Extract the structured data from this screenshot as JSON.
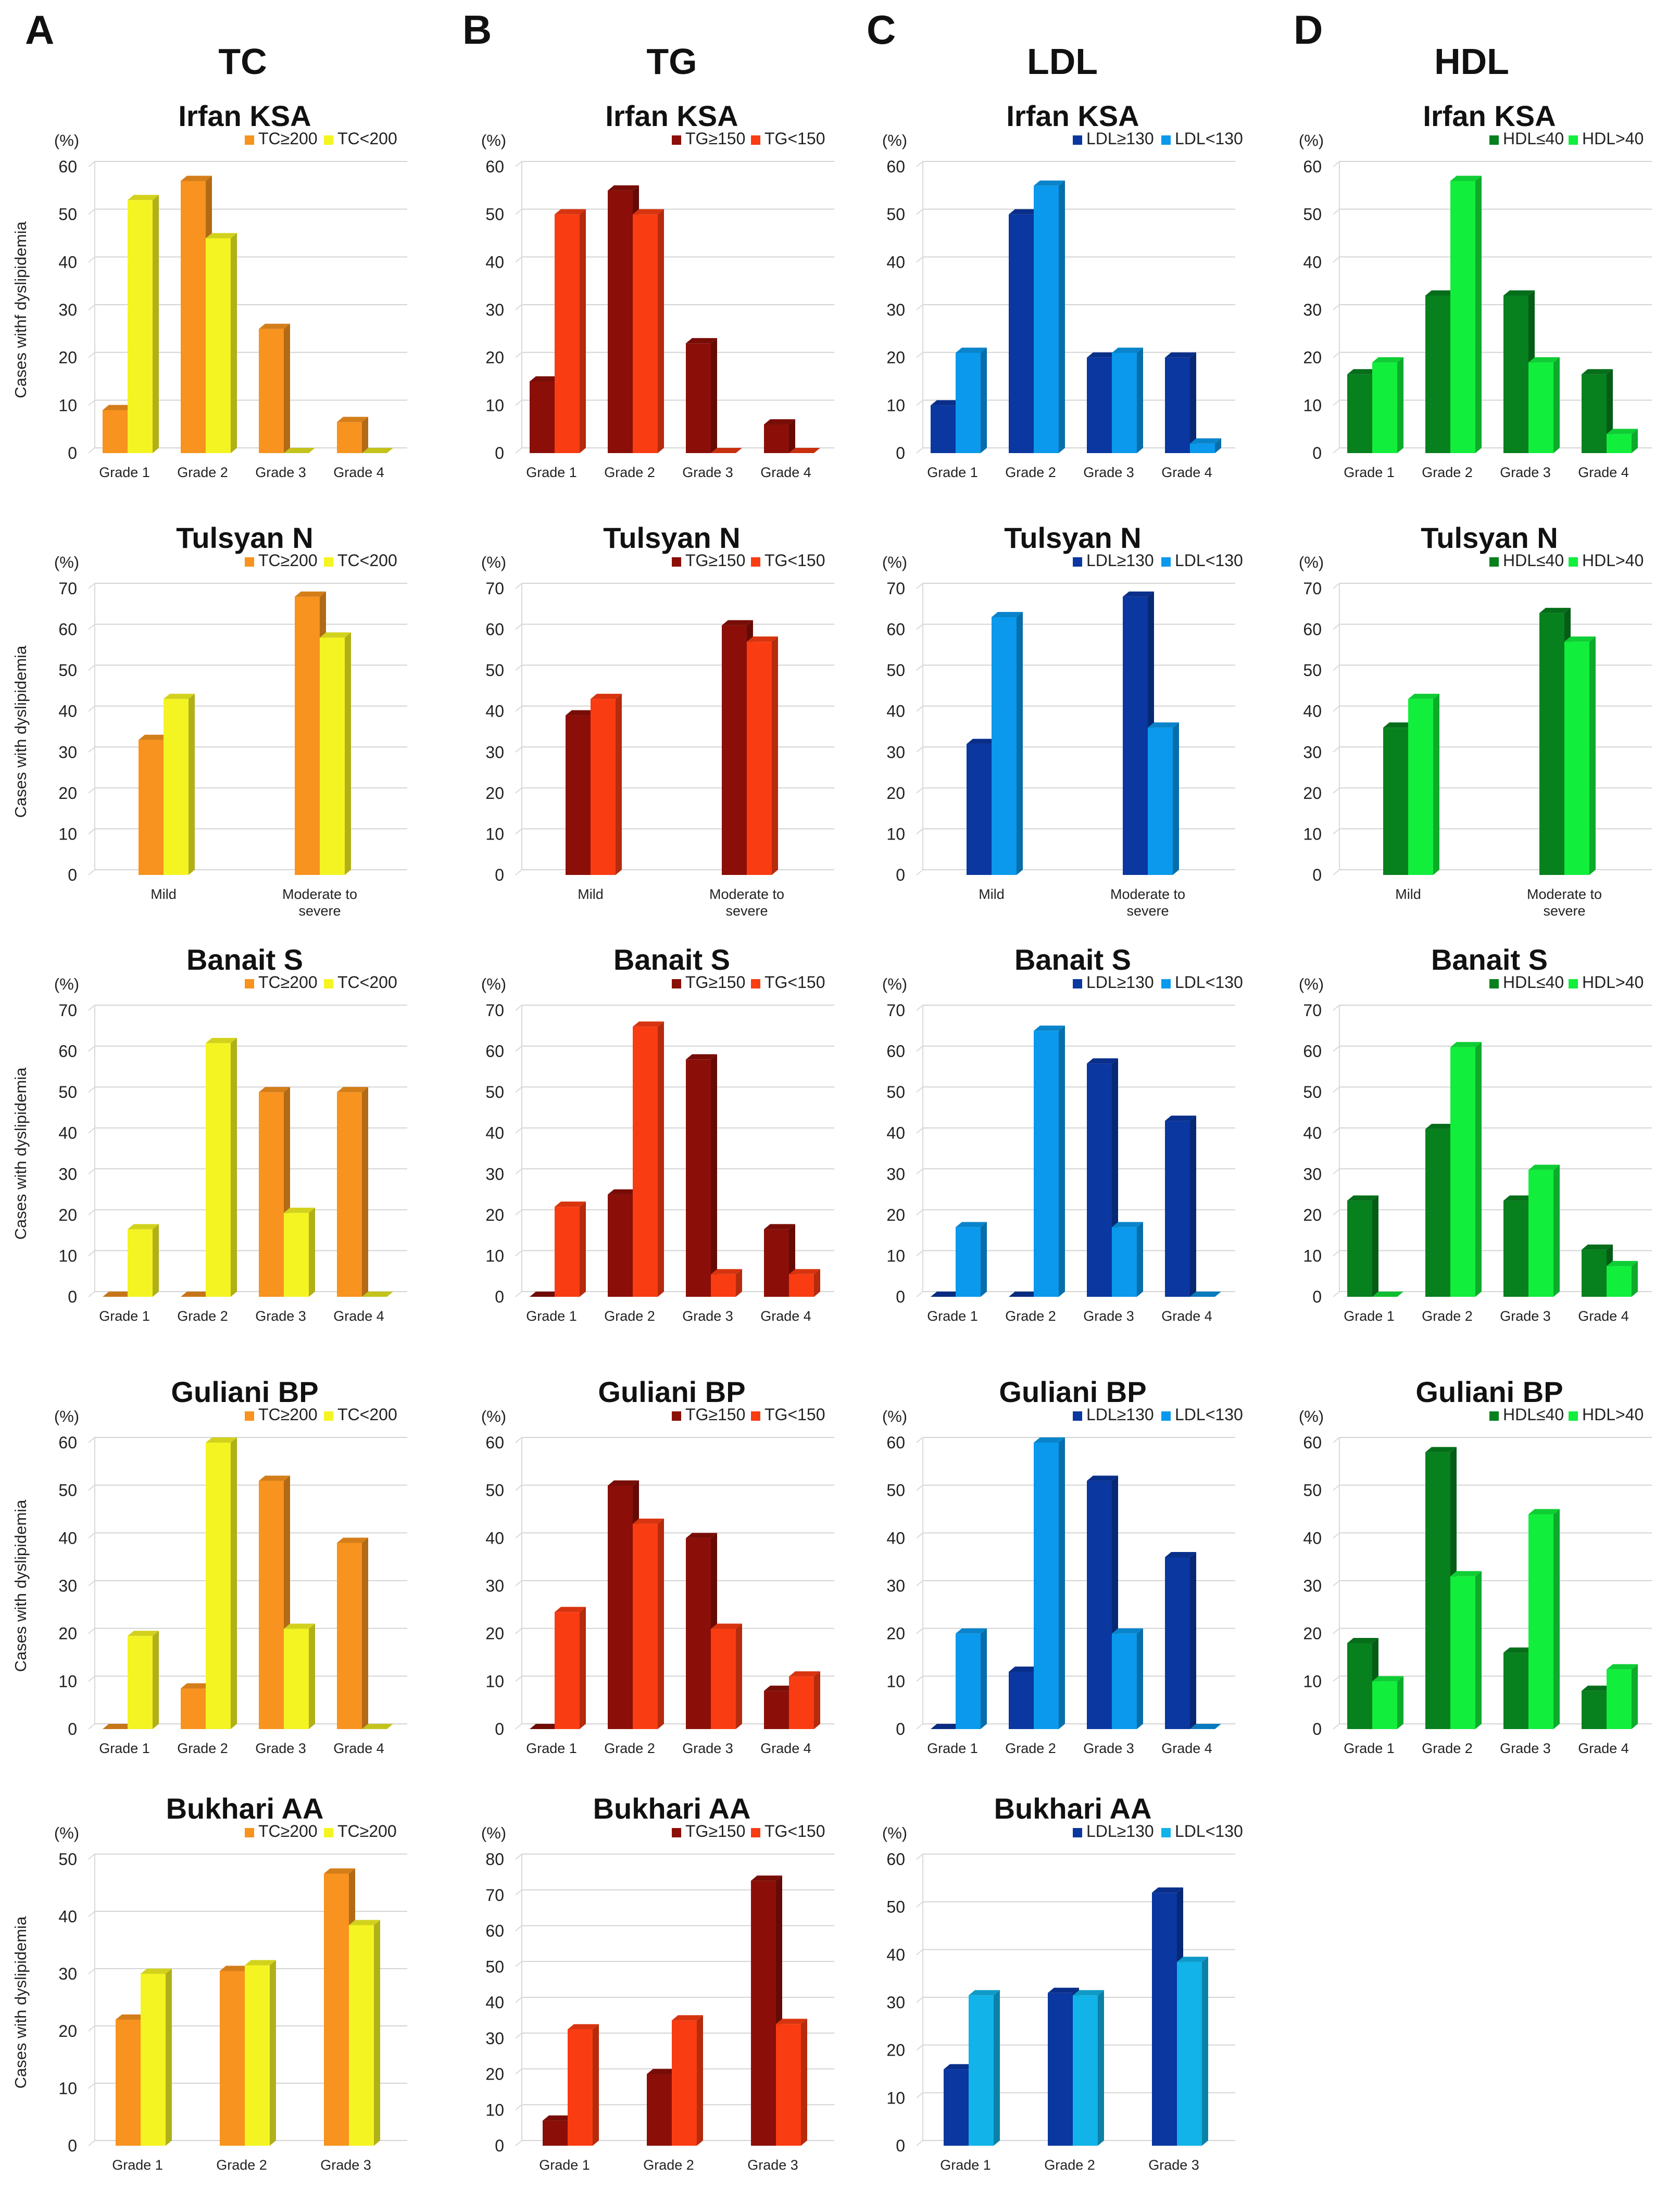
{
  "panel_letters": [
    "A",
    "B",
    "C",
    "D"
  ],
  "column_titles": [
    "TC",
    "TG",
    "LDL",
    "HDL"
  ],
  "colors": {
    "TC": [
      "#F7931E",
      "#F4F423"
    ],
    "TG": [
      "#8B0F08",
      "#FA3C12"
    ],
    "LDL": [
      "#0A37A0",
      "#0A99EC"
    ],
    "LDL_bukhari": [
      "#0A37A0",
      "#11B3E8"
    ],
    "HDL": [
      "#07801E",
      "#12EE3C"
    ]
  },
  "chart_data": [
    {
      "type": "bar",
      "col": 0,
      "row": 0,
      "title": "Irfan KSA",
      "unit": "(%)",
      "ylabel": "Cases withf dyslipidemia",
      "categories": [
        "Grade 1",
        "Grade 2",
        "Grade 3",
        "Grade 4"
      ],
      "ylim": [
        0,
        60
      ],
      "yticks": [
        0,
        10,
        20,
        30,
        40,
        50,
        60
      ],
      "series": [
        {
          "name": "TC≥200",
          "values": [
            9,
            57,
            26,
            6.5
          ]
        },
        {
          "name": "TC<200",
          "values": [
            53,
            45,
            0,
            0
          ]
        }
      ]
    },
    {
      "type": "bar",
      "col": 1,
      "row": 0,
      "title": "Irfan KSA",
      "unit": "(%)",
      "ylabel": "",
      "categories": [
        "Grade 1",
        "Grade 2",
        "Grade 3",
        "Grade 4"
      ],
      "ylim": [
        0,
        60
      ],
      "yticks": [
        0,
        10,
        20,
        30,
        40,
        50,
        60
      ],
      "series": [
        {
          "name": "TG≥150",
          "values": [
            15,
            55,
            23,
            6
          ]
        },
        {
          "name": "TG<150",
          "values": [
            50,
            50,
            0,
            0
          ]
        }
      ]
    },
    {
      "type": "bar",
      "col": 2,
      "row": 0,
      "title": "Irfan KSA",
      "unit": "(%)",
      "ylabel": "",
      "categories": [
        "Grade 1",
        "Grade 2",
        "Grade 3",
        "Grade 4"
      ],
      "ylim": [
        0,
        60
      ],
      "yticks": [
        0,
        10,
        20,
        30,
        40,
        50,
        60
      ],
      "series": [
        {
          "name": "LDL≥130",
          "values": [
            10,
            50,
            20,
            20
          ]
        },
        {
          "name": "LDL<130",
          "values": [
            21,
            56,
            21,
            2
          ]
        }
      ]
    },
    {
      "type": "bar",
      "col": 3,
      "row": 0,
      "title": "Irfan KSA",
      "unit": "(%)",
      "ylabel": "",
      "categories": [
        "Grade 1",
        "Grade 2",
        "Grade 3",
        "Grade 4"
      ],
      "ylim": [
        0,
        60
      ],
      "yticks": [
        0,
        10,
        20,
        30,
        40,
        50,
        60
      ],
      "series": [
        {
          "name": "HDL≤40",
          "values": [
            16.5,
            33,
            33,
            16.5
          ]
        },
        {
          "name": "HDL>40",
          "values": [
            19,
            57,
            19,
            4
          ]
        }
      ]
    },
    {
      "type": "bar",
      "col": 0,
      "row": 1,
      "title": "Tulsyan N",
      "unit": "(%)",
      "ylabel": "Cases with dyslipidemia",
      "categories": [
        "Mild",
        "Moderate to severe"
      ],
      "ylim": [
        0,
        70
      ],
      "yticks": [
        0,
        10,
        20,
        30,
        40,
        50,
        60,
        70
      ],
      "series": [
        {
          "name": "TC≥200",
          "values": [
            33,
            68
          ]
        },
        {
          "name": "TC<200",
          "values": [
            43,
            58
          ]
        }
      ]
    },
    {
      "type": "bar",
      "col": 1,
      "row": 1,
      "title": "Tulsyan N",
      "unit": "(%)",
      "ylabel": "",
      "categories": [
        "Mild",
        "Moderate to severe"
      ],
      "ylim": [
        0,
        70
      ],
      "yticks": [
        0,
        10,
        20,
        30,
        40,
        50,
        60,
        70
      ],
      "series": [
        {
          "name": "TG≥150",
          "values": [
            39,
            61
          ]
        },
        {
          "name": "TG<150",
          "values": [
            43,
            57
          ]
        }
      ]
    },
    {
      "type": "bar",
      "col": 2,
      "row": 1,
      "title": "Tulsyan N",
      "unit": "(%)",
      "ylabel": "",
      "categories": [
        "Mild",
        "Moderate to severe"
      ],
      "ylim": [
        0,
        70
      ],
      "yticks": [
        0,
        10,
        20,
        30,
        40,
        50,
        60,
        70
      ],
      "series": [
        {
          "name": "LDL≥130",
          "values": [
            32,
            68
          ]
        },
        {
          "name": "LDL<130",
          "values": [
            63,
            36
          ]
        }
      ]
    },
    {
      "type": "bar",
      "col": 3,
      "row": 1,
      "title": "Tulsyan N",
      "unit": "(%)",
      "ylabel": "",
      "categories": [
        "Mild",
        "Moderate to severe"
      ],
      "ylim": [
        0,
        70
      ],
      "yticks": [
        0,
        10,
        20,
        30,
        40,
        50,
        60,
        70
      ],
      "series": [
        {
          "name": "HDL≤40",
          "values": [
            36,
            64
          ]
        },
        {
          "name": "HDL>40",
          "values": [
            43,
            57
          ]
        }
      ]
    },
    {
      "type": "bar",
      "col": 0,
      "row": 2,
      "title": "Banait S",
      "unit": "(%)",
      "ylabel": "Cases with dyslipidemia",
      "categories": [
        "Grade 1",
        "Grade 2",
        "Grade 3",
        "Grade 4"
      ],
      "ylim": [
        0,
        70
      ],
      "yticks": [
        0,
        10,
        20,
        30,
        40,
        50,
        60,
        70
      ],
      "series": [
        {
          "name": "TC≥200",
          "values": [
            0,
            0,
            50,
            50
          ]
        },
        {
          "name": "TC<200",
          "values": [
            16.5,
            62,
            20.5,
            0
          ]
        }
      ]
    },
    {
      "type": "bar",
      "col": 1,
      "row": 2,
      "title": "Banait S",
      "unit": "(%)",
      "ylabel": "",
      "categories": [
        "Grade 1",
        "Grade 2",
        "Grade 3",
        "Grade 4"
      ],
      "ylim": [
        0,
        70
      ],
      "yticks": [
        0,
        10,
        20,
        30,
        40,
        50,
        60,
        70
      ],
      "series": [
        {
          "name": "TG≥150",
          "values": [
            0,
            25,
            58,
            16.5
          ]
        },
        {
          "name": "TG<150",
          "values": [
            22,
            66,
            5.5,
            5.5
          ]
        }
      ]
    },
    {
      "type": "bar",
      "col": 2,
      "row": 2,
      "title": "Banait S",
      "unit": "(%)",
      "ylabel": "",
      "categories": [
        "Grade 1",
        "Grade 2",
        "Grade 3",
        "Grade 4"
      ],
      "ylim": [
        0,
        70
      ],
      "yticks": [
        0,
        10,
        20,
        30,
        40,
        50,
        60,
        70
      ],
      "series": [
        {
          "name": "LDL≥130",
          "values": [
            0,
            0,
            57,
            43
          ]
        },
        {
          "name": "LDL<130",
          "values": [
            17,
            65,
            17,
            0
          ]
        }
      ]
    },
    {
      "type": "bar",
      "col": 3,
      "row": 2,
      "title": "Banait S",
      "unit": "(%)",
      "ylabel": "",
      "categories": [
        "Grade 1",
        "Grade 2",
        "Grade 3",
        "Grade 4"
      ],
      "ylim": [
        0,
        70
      ],
      "yticks": [
        0,
        10,
        20,
        30,
        40,
        50,
        60,
        70
      ],
      "series": [
        {
          "name": "HDL≤40",
          "values": [
            23.5,
            41,
            23.5,
            11.5
          ]
        },
        {
          "name": "HDL>40",
          "values": [
            0,
            61,
            31,
            7.5
          ]
        }
      ]
    },
    {
      "type": "bar",
      "col": 0,
      "row": 3,
      "title": "Guliani BP",
      "unit": "(%)",
      "ylabel": "Cases with dyslipidemia",
      "categories": [
        "Grade 1",
        "Grade 2",
        "Grade 3",
        "Grade 4"
      ],
      "ylim": [
        0,
        60
      ],
      "yticks": [
        0,
        10,
        20,
        30,
        40,
        50,
        60
      ],
      "series": [
        {
          "name": "TC≥200",
          "values": [
            0,
            8.5,
            52,
            39
          ]
        },
        {
          "name": "TC<200",
          "values": [
            19.5,
            60,
            21,
            0
          ]
        }
      ]
    },
    {
      "type": "bar",
      "col": 1,
      "row": 3,
      "title": "Guliani BP",
      "unit": "(%)",
      "ylabel": "",
      "categories": [
        "Grade 1",
        "Grade 2",
        "Grade 3",
        "Grade 4"
      ],
      "ylim": [
        0,
        60
      ],
      "yticks": [
        0,
        10,
        20,
        30,
        40,
        50,
        60
      ],
      "series": [
        {
          "name": "TG≥150",
          "values": [
            0,
            51,
            40,
            8
          ]
        },
        {
          "name": "TG<150",
          "values": [
            24.5,
            43,
            21,
            11
          ]
        }
      ]
    },
    {
      "type": "bar",
      "col": 2,
      "row": 3,
      "title": "Guliani BP",
      "unit": "(%)",
      "ylabel": "",
      "categories": [
        "Grade 1",
        "Grade 2",
        "Grade 3",
        "Grade 4"
      ],
      "ylim": [
        0,
        60
      ],
      "yticks": [
        0,
        10,
        20,
        30,
        40,
        50,
        60
      ],
      "series": [
        {
          "name": "LDL≥130",
          "values": [
            0,
            12,
            52,
            36
          ]
        },
        {
          "name": "LDL<130",
          "values": [
            20,
            60,
            20,
            0
          ]
        }
      ]
    },
    {
      "type": "bar",
      "col": 3,
      "row": 3,
      "title": "Guliani BP",
      "unit": "(%)",
      "ylabel": "",
      "categories": [
        "Grade 1",
        "Grade 2",
        "Grade 3",
        "Grade 4"
      ],
      "ylim": [
        0,
        60
      ],
      "yticks": [
        0,
        10,
        20,
        30,
        40,
        50,
        60
      ],
      "series": [
        {
          "name": "HDL≤40",
          "values": [
            18,
            58,
            16,
            8
          ]
        },
        {
          "name": "HDL>40",
          "values": [
            10,
            32,
            45,
            12.5
          ]
        }
      ]
    },
    {
      "type": "bar",
      "col": 0,
      "row": 4,
      "title": "Bukhari AA",
      "unit": "(%)",
      "ylabel": "Cases with dyslipidemia",
      "categories": [
        "Grade 1",
        "Grade 2",
        "Grade 3"
      ],
      "ylim": [
        0,
        50
      ],
      "yticks": [
        0,
        10,
        20,
        30,
        40,
        50
      ],
      "series": [
        {
          "name": "TC≥200",
          "values": [
            22,
            30.5,
            47.5
          ]
        },
        {
          "name": "TC≥200",
          "values": [
            30,
            31.5,
            38.5
          ]
        }
      ]
    },
    {
      "type": "bar",
      "col": 1,
      "row": 4,
      "title": "Bukhari AA",
      "unit": "(%)",
      "ylabel": "",
      "categories": [
        "Grade 1",
        "Grade 2",
        "Grade 3"
      ],
      "ylim": [
        0,
        80
      ],
      "yticks": [
        0,
        10,
        20,
        30,
        40,
        50,
        60,
        70,
        80
      ],
      "series": [
        {
          "name": "TG≥150",
          "values": [
            7,
            20,
            74
          ]
        },
        {
          "name": "TG<150",
          "values": [
            32.5,
            35,
            34
          ]
        }
      ]
    },
    {
      "type": "bar",
      "col": 2,
      "row": 4,
      "title": "Bukhari AA",
      "unit": "(%)",
      "ylabel": "",
      "categories": [
        "Grade 1",
        "Grade 2",
        "Grade 3"
      ],
      "ylim": [
        0,
        60
      ],
      "yticks": [
        0,
        10,
        20,
        30,
        40,
        50,
        60
      ],
      "series": [
        {
          "name": "LDL≥130",
          "values": [
            16,
            32,
            53
          ]
        },
        {
          "name": "LDL<130",
          "values": [
            31.5,
            31.5,
            38.5
          ]
        }
      ]
    }
  ]
}
